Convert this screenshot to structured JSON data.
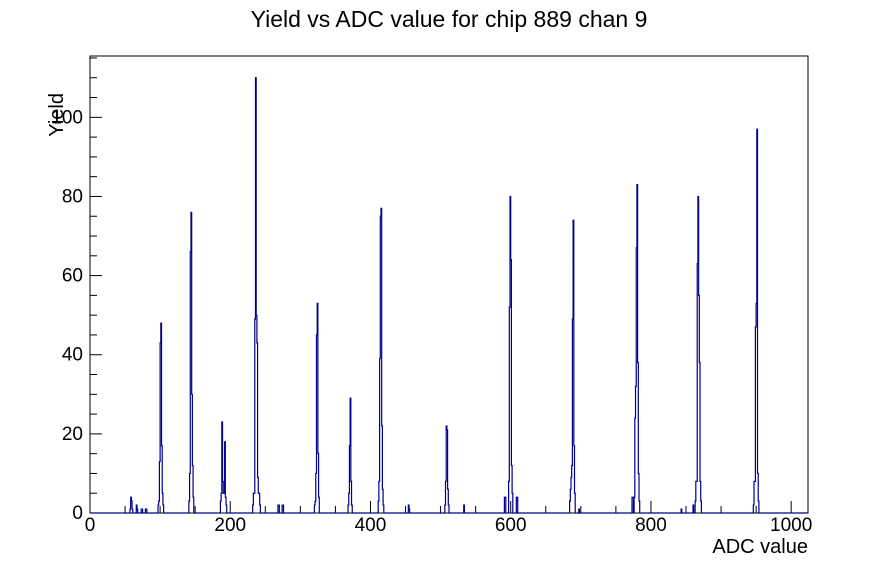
{
  "chart_data": {
    "type": "bar",
    "subtype": "histogram-step-outline",
    "title": "Yield vs ADC value for chip 889 chan 9",
    "xlabel": "ADC value",
    "ylabel": "Yield",
    "xlim": [
      0,
      1024
    ],
    "ylim": [
      0,
      115.5
    ],
    "grid": false,
    "legend": "none",
    "xticks": {
      "major": [
        0,
        200,
        400,
        600,
        800,
        1000
      ],
      "minor_step": 50
    },
    "yticks": {
      "major": [
        0,
        20,
        40,
        60,
        80,
        100
      ],
      "minor_step": 5
    },
    "line_color": "#00008b",
    "axis_color": "#000000",
    "background_color": "#ffffff",
    "peaks": [
      {
        "adc": 101,
        "yield": 48
      },
      {
        "adc": 144,
        "yield": 76
      },
      {
        "adc": 188,
        "yield": 23
      },
      {
        "adc": 236,
        "yield": 110
      },
      {
        "adc": 324,
        "yield": 53
      },
      {
        "adc": 371,
        "yield": 29
      },
      {
        "adc": 415,
        "yield": 77
      },
      {
        "adc": 508,
        "yield": 22
      },
      {
        "adc": 599,
        "yield": 80
      },
      {
        "adc": 689,
        "yield": 74
      },
      {
        "adc": 780,
        "yield": 83
      },
      {
        "adc": 867,
        "yield": 80
      },
      {
        "adc": 951,
        "yield": 97
      }
    ],
    "bins": [
      [
        57,
        1
      ],
      [
        58,
        4
      ],
      [
        59,
        3
      ],
      [
        60,
        1
      ],
      [
        66,
        2
      ],
      [
        67,
        1
      ],
      [
        73,
        1
      ],
      [
        74,
        1
      ],
      [
        79,
        1
      ],
      [
        80,
        1
      ],
      [
        97,
        2
      ],
      [
        98,
        3
      ],
      [
        99,
        13
      ],
      [
        100,
        43
      ],
      [
        101,
        48
      ],
      [
        102,
        17
      ],
      [
        103,
        5
      ],
      [
        104,
        2
      ],
      [
        141,
        3
      ],
      [
        142,
        10
      ],
      [
        143,
        66
      ],
      [
        144,
        76
      ],
      [
        145,
        30
      ],
      [
        146,
        12
      ],
      [
        147,
        4
      ],
      [
        186,
        3
      ],
      [
        187,
        5
      ],
      [
        188,
        23
      ],
      [
        189,
        8
      ],
      [
        190,
        5
      ],
      [
        191,
        5
      ],
      [
        192,
        18
      ],
      [
        193,
        4
      ],
      [
        194,
        2
      ],
      [
        232,
        2
      ],
      [
        233,
        5
      ],
      [
        234,
        5
      ],
      [
        235,
        49
      ],
      [
        236,
        110
      ],
      [
        237,
        50
      ],
      [
        238,
        43
      ],
      [
        239,
        9
      ],
      [
        240,
        5
      ],
      [
        241,
        5
      ],
      [
        242,
        2
      ],
      [
        268,
        2
      ],
      [
        269,
        2
      ],
      [
        274,
        2
      ],
      [
        275,
        2
      ],
      [
        320,
        2
      ],
      [
        321,
        3
      ],
      [
        322,
        10
      ],
      [
        323,
        45
      ],
      [
        324,
        53
      ],
      [
        325,
        15
      ],
      [
        326,
        4
      ],
      [
        368,
        2
      ],
      [
        369,
        5
      ],
      [
        370,
        17
      ],
      [
        371,
        29
      ],
      [
        372,
        8
      ],
      [
        373,
        2
      ],
      [
        411,
        3
      ],
      [
        412,
        8
      ],
      [
        413,
        39
      ],
      [
        414,
        75
      ],
      [
        415,
        77
      ],
      [
        416,
        22
      ],
      [
        417,
        6
      ],
      [
        418,
        2
      ],
      [
        454,
        2
      ],
      [
        455,
        1
      ],
      [
        506,
        2
      ],
      [
        507,
        8
      ],
      [
        508,
        22
      ],
      [
        509,
        21
      ],
      [
        510,
        6
      ],
      [
        511,
        2
      ],
      [
        533,
        2
      ],
      [
        591,
        4
      ],
      [
        592,
        4
      ],
      [
        597,
        8
      ],
      [
        598,
        52
      ],
      [
        599,
        80
      ],
      [
        600,
        64
      ],
      [
        601,
        12
      ],
      [
        602,
        5
      ],
      [
        608,
        4
      ],
      [
        609,
        4
      ],
      [
        684,
        3
      ],
      [
        685,
        6
      ],
      [
        686,
        9
      ],
      [
        687,
        12
      ],
      [
        688,
        49
      ],
      [
        689,
        74
      ],
      [
        690,
        17
      ],
      [
        691,
        5
      ],
      [
        697,
        1
      ],
      [
        773,
        4
      ],
      [
        774,
        4
      ],
      [
        776,
        4
      ],
      [
        777,
        24
      ],
      [
        778,
        32
      ],
      [
        779,
        67
      ],
      [
        780,
        83
      ],
      [
        781,
        38
      ],
      [
        782,
        10
      ],
      [
        783,
        3
      ],
      [
        843,
        1
      ],
      [
        860,
        2
      ],
      [
        863,
        3
      ],
      [
        864,
        8
      ],
      [
        865,
        8
      ],
      [
        866,
        63
      ],
      [
        867,
        80
      ],
      [
        868,
        55
      ],
      [
        869,
        38
      ],
      [
        870,
        8
      ],
      [
        871,
        3
      ],
      [
        946,
        2
      ],
      [
        947,
        8
      ],
      [
        948,
        8
      ],
      [
        949,
        47
      ],
      [
        950,
        53
      ],
      [
        951,
        97
      ],
      [
        952,
        10
      ],
      [
        953,
        3
      ]
    ]
  }
}
